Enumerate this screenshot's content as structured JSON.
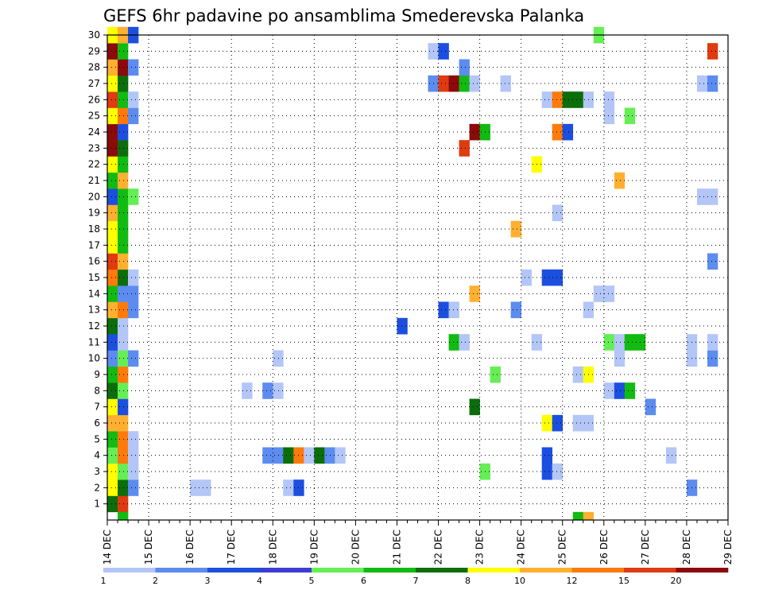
{
  "chart_data": {
    "type": "heatmap",
    "title": "GEFS 6hr padavine po ansamblima Smederevska Palanka",
    "xlabel": "",
    "ylabel": "",
    "x_ticks": [
      "14 DEC",
      "15 DEC",
      "16 DEC",
      "17 DEC",
      "18 DEC",
      "19 DEC",
      "20 DEC",
      "21 DEC",
      "22 DEC",
      "23 DEC",
      "24 DEC",
      "25 DEC",
      "26 DEC",
      "27 DEC",
      "28 DEC",
      "29 DEC"
    ],
    "y_ticks": [
      "1",
      "2",
      "3",
      "4",
      "5",
      "6",
      "7",
      "8",
      "9",
      "10",
      "11",
      "12",
      "13",
      "14",
      "15",
      "16",
      "17",
      "18",
      "19",
      "20",
      "21",
      "22",
      "23",
      "24",
      "25",
      "26",
      "27",
      "28",
      "29",
      "30"
    ],
    "xlim": [
      0,
      15
    ],
    "ylim": [
      0,
      30
    ],
    "steps_per_day": 4,
    "grid": true,
    "colorbar": {
      "labels": [
        "1",
        "2",
        "3",
        "4",
        "5",
        "6",
        "7",
        "8",
        "10",
        "12",
        "15",
        "20"
      ],
      "colors": [
        "#b3c6f7",
        "#5c8cf0",
        "#1c4fe0",
        "#3d3dd6",
        "#66ee55",
        "#11bb11",
        "#0b6e0b",
        "#ffff00",
        "#ffb030",
        "#ff7a0a",
        "#e03a10",
        "#8c0a0a"
      ]
    },
    "cells": [
      [
        0,
        1,
        "#0b6e0b"
      ],
      [
        1,
        1,
        "#e03a10"
      ],
      [
        0,
        2,
        "#ffff00"
      ],
      [
        1,
        2,
        "#0b6e0b"
      ],
      [
        2,
        2,
        "#5c8cf0"
      ],
      [
        0,
        3,
        "#ffff00"
      ],
      [
        1,
        3,
        "#66ee55"
      ],
      [
        2,
        3,
        "#b3c6f7"
      ],
      [
        0,
        4,
        "#66ee55"
      ],
      [
        1,
        4,
        "#ff7a0a"
      ],
      [
        2,
        4,
        "#b3c6f7"
      ],
      [
        0,
        5,
        "#11bb11"
      ],
      [
        1,
        5,
        "#ff7a0a"
      ],
      [
        2,
        5,
        "#b3c6f7"
      ],
      [
        0,
        6,
        "#ffb030"
      ],
      [
        1,
        6,
        "#ffb030"
      ],
      [
        0,
        7,
        "#ffff00"
      ],
      [
        1,
        7,
        "#1c4fe0"
      ],
      [
        0,
        8,
        "#0b6e0b"
      ],
      [
        1,
        8,
        "#66ee55"
      ],
      [
        0,
        9,
        "#11bb11"
      ],
      [
        1,
        9,
        "#ff7a0a"
      ],
      [
        0,
        10,
        "#5c8cf0"
      ],
      [
        1,
        10,
        "#66ee55"
      ],
      [
        2,
        10,
        "#5c8cf0"
      ],
      [
        0,
        11,
        "#1c4fe0"
      ],
      [
        1,
        11,
        "#b3c6f7"
      ],
      [
        0,
        12,
        "#0b6e0b"
      ],
      [
        1,
        12,
        "#b3c6f7"
      ],
      [
        0,
        13,
        "#ffb030"
      ],
      [
        1,
        13,
        "#ff7a0a"
      ],
      [
        2,
        13,
        "#5c8cf0"
      ],
      [
        0,
        14,
        "#11bb11"
      ],
      [
        1,
        14,
        "#5c8cf0"
      ],
      [
        2,
        14,
        "#5c8cf0"
      ],
      [
        0,
        15,
        "#ff7a0a"
      ],
      [
        1,
        15,
        "#0b6e0b"
      ],
      [
        2,
        15,
        "#b3c6f7"
      ],
      [
        0,
        16,
        "#e03a10"
      ],
      [
        1,
        16,
        "#ffb030"
      ],
      [
        0,
        17,
        "#ffff00"
      ],
      [
        1,
        17,
        "#11bb11"
      ],
      [
        0,
        18,
        "#ffff00"
      ],
      [
        1,
        18,
        "#11bb11"
      ],
      [
        0,
        19,
        "#ffb030"
      ],
      [
        1,
        19,
        "#11bb11"
      ],
      [
        0,
        20,
        "#1c4fe0"
      ],
      [
        1,
        20,
        "#11bb11"
      ],
      [
        2,
        20,
        "#66ee55"
      ],
      [
        0,
        21,
        "#11bb11"
      ],
      [
        1,
        21,
        "#ffb030"
      ],
      [
        0,
        22,
        "#ffff00"
      ],
      [
        1,
        22,
        "#11bb11"
      ],
      [
        0,
        23,
        "#8c0a0a"
      ],
      [
        1,
        23,
        "#0b6e0b"
      ],
      [
        0,
        24,
        "#8c0a0a"
      ],
      [
        1,
        24,
        "#1c4fe0"
      ],
      [
        0,
        25,
        "#ffff00"
      ],
      [
        1,
        25,
        "#ff7a0a"
      ],
      [
        2,
        25,
        "#5c8cf0"
      ],
      [
        0,
        26,
        "#e03a10"
      ],
      [
        1,
        26,
        "#11bb11"
      ],
      [
        2,
        26,
        "#b3c6f7"
      ],
      [
        0,
        27,
        "#ffff00"
      ],
      [
        1,
        27,
        "#0b6e0b"
      ],
      [
        0,
        28,
        "#ffb030"
      ],
      [
        1,
        28,
        "#8c0a0a"
      ],
      [
        2,
        28,
        "#5c8cf0"
      ],
      [
        0,
        29,
        "#8c0a0a"
      ],
      [
        1,
        29,
        "#11bb11"
      ],
      [
        0,
        30,
        "#ffff00"
      ],
      [
        1,
        30,
        "#ffb030"
      ],
      [
        2,
        30,
        "#1c4fe0"
      ],
      [
        1,
        0,
        "#11bb11"
      ],
      [
        8,
        2,
        "#b3c6f7"
      ],
      [
        9,
        2,
        "#b3c6f7"
      ],
      [
        17,
        2,
        "#b3c6f7"
      ],
      [
        18,
        2,
        "#1c4fe0"
      ],
      [
        56,
        2,
        "#5c8cf0"
      ],
      [
        36,
        3,
        "#66ee55"
      ],
      [
        42,
        3,
        "#1c4fe0"
      ],
      [
        43,
        3,
        "#b3c6f7"
      ],
      [
        15,
        4,
        "#5c8cf0"
      ],
      [
        16,
        4,
        "#5c8cf0"
      ],
      [
        17,
        4,
        "#0b6e0b"
      ],
      [
        18,
        4,
        "#ff7a0a"
      ],
      [
        19,
        4,
        "#b3c6f7"
      ],
      [
        20,
        4,
        "#0b6e0b"
      ],
      [
        21,
        4,
        "#5c8cf0"
      ],
      [
        22,
        4,
        "#b3c6f7"
      ],
      [
        42,
        4,
        "#1c4fe0"
      ],
      [
        54,
        4,
        "#b3c6f7"
      ],
      [
        42,
        6,
        "#ffff00"
      ],
      [
        43,
        6,
        "#1c4fe0"
      ],
      [
        45,
        6,
        "#b3c6f7"
      ],
      [
        46,
        6,
        "#b3c6f7"
      ],
      [
        35,
        7,
        "#0b6e0b"
      ],
      [
        52,
        7,
        "#5c8cf0"
      ],
      [
        13,
        8,
        "#b3c6f7"
      ],
      [
        15,
        8,
        "#5c8cf0"
      ],
      [
        16,
        8,
        "#b3c6f7"
      ],
      [
        48,
        8,
        "#b3c6f7"
      ],
      [
        49,
        8,
        "#1c4fe0"
      ],
      [
        50,
        8,
        "#11bb11"
      ],
      [
        37,
        9,
        "#66ee55"
      ],
      [
        45,
        9,
        "#b3c6f7"
      ],
      [
        46,
        9,
        "#ffff00"
      ],
      [
        16,
        10,
        "#b3c6f7"
      ],
      [
        49,
        10,
        "#b3c6f7"
      ],
      [
        56,
        10,
        "#b3c6f7"
      ],
      [
        58,
        10,
        "#5c8cf0"
      ],
      [
        33,
        11,
        "#11bb11"
      ],
      [
        34,
        11,
        "#b3c6f7"
      ],
      [
        41,
        11,
        "#b3c6f7"
      ],
      [
        48,
        11,
        "#66ee55"
      ],
      [
        49,
        11,
        "#b3c6f7"
      ],
      [
        50,
        11,
        "#11bb11"
      ],
      [
        51,
        11,
        "#11bb11"
      ],
      [
        56,
        11,
        "#b3c6f7"
      ],
      [
        58,
        11,
        "#b3c6f7"
      ],
      [
        28,
        12,
        "#1c4fe0"
      ],
      [
        32,
        13,
        "#1c4fe0"
      ],
      [
        33,
        13,
        "#b3c6f7"
      ],
      [
        39,
        13,
        "#5c8cf0"
      ],
      [
        46,
        13,
        "#b3c6f7"
      ],
      [
        35,
        14,
        "#ffb030"
      ],
      [
        47,
        14,
        "#b3c6f7"
      ],
      [
        48,
        14,
        "#b3c6f7"
      ],
      [
        40,
        15,
        "#b3c6f7"
      ],
      [
        42,
        15,
        "#1c4fe0"
      ],
      [
        43,
        15,
        "#1c4fe0"
      ],
      [
        58,
        16,
        "#5c8cf0"
      ],
      [
        39,
        18,
        "#ffb030"
      ],
      [
        43,
        19,
        "#b3c6f7"
      ],
      [
        57,
        20,
        "#b3c6f7"
      ],
      [
        58,
        20,
        "#b3c6f7"
      ],
      [
        49,
        21,
        "#ffb030"
      ],
      [
        41,
        22,
        "#ffff00"
      ],
      [
        34,
        23,
        "#e03a10"
      ],
      [
        35,
        24,
        "#8c0a0a"
      ],
      [
        36,
        24,
        "#11bb11"
      ],
      [
        43,
        24,
        "#ff7a0a"
      ],
      [
        44,
        24,
        "#1c4fe0"
      ],
      [
        48,
        25,
        "#b3c6f7"
      ],
      [
        50,
        25,
        "#66ee55"
      ],
      [
        42,
        26,
        "#b3c6f7"
      ],
      [
        43,
        26,
        "#ff7a0a"
      ],
      [
        44,
        26,
        "#0b6e0b"
      ],
      [
        45,
        26,
        "#0b6e0b"
      ],
      [
        46,
        26,
        "#b3c6f7"
      ],
      [
        48,
        26,
        "#b3c6f7"
      ],
      [
        31,
        27,
        "#5c8cf0"
      ],
      [
        32,
        27,
        "#e03a10"
      ],
      [
        33,
        27,
        "#8c0a0a"
      ],
      [
        34,
        27,
        "#11bb11"
      ],
      [
        35,
        27,
        "#b3c6f7"
      ],
      [
        38,
        27,
        "#b3c6f7"
      ],
      [
        57,
        27,
        "#b3c6f7"
      ],
      [
        58,
        27,
        "#5c8cf0"
      ],
      [
        34,
        28,
        "#5c8cf0"
      ],
      [
        31,
        29,
        "#b3c6f7"
      ],
      [
        32,
        29,
        "#1c4fe0"
      ],
      [
        58,
        29,
        "#e03a10"
      ],
      [
        47,
        30,
        "#66ee55"
      ],
      [
        45,
        0,
        "#11bb11"
      ],
      [
        46,
        0,
        "#ffb030"
      ]
    ]
  }
}
